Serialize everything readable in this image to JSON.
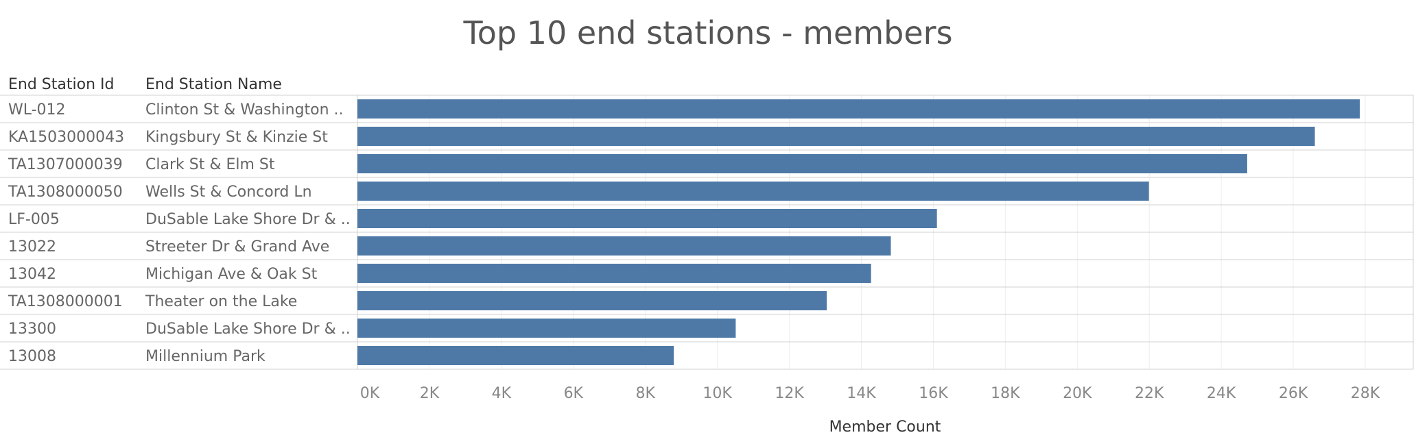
{
  "chart_data": {
    "type": "bar",
    "orientation": "horizontal",
    "title": "Top 10 end stations - members",
    "columns": [
      "End Station Id",
      "End Station Name"
    ],
    "rows": [
      {
        "id": "WL-012",
        "name": "Clinton St & Washington ..",
        "value": 27850
      },
      {
        "id": "KA1503000043",
        "name": "Kingsbury St & Kinzie St",
        "value": 26600
      },
      {
        "id": "TA1307000039",
        "name": "Clark St & Elm St",
        "value": 24720
      },
      {
        "id": "TA1308000050",
        "name": "Wells St & Concord Ln",
        "value": 21990
      },
      {
        "id": "LF-005",
        "name": "DuSable Lake Shore Dr & ..",
        "value": 16100
      },
      {
        "id": "13022",
        "name": "Streeter Dr & Grand Ave",
        "value": 14820
      },
      {
        "id": "13042",
        "name": "Michigan Ave & Oak St",
        "value": 14270
      },
      {
        "id": "TA1308000001",
        "name": "Theater on the Lake",
        "value": 13040
      },
      {
        "id": "13300",
        "name": "DuSable Lake Shore Dr & ..",
        "value": 10510
      },
      {
        "id": "13008",
        "name": "Millennium Park",
        "value": 8790
      }
    ],
    "xlabel": "Member Count",
    "xlim": [
      0,
      29200
    ],
    "xticks": [
      0,
      2000,
      4000,
      6000,
      8000,
      10000,
      12000,
      14000,
      16000,
      18000,
      20000,
      22000,
      24000,
      26000,
      28000
    ],
    "xtick_labels": [
      "0K",
      "2K",
      "4K",
      "6K",
      "8K",
      "10K",
      "12K",
      "14K",
      "16K",
      "18K",
      "20K",
      "22K",
      "24K",
      "26K",
      "28K"
    ],
    "bar_color": "#4e79a7",
    "grid": true,
    "legend": "none"
  }
}
